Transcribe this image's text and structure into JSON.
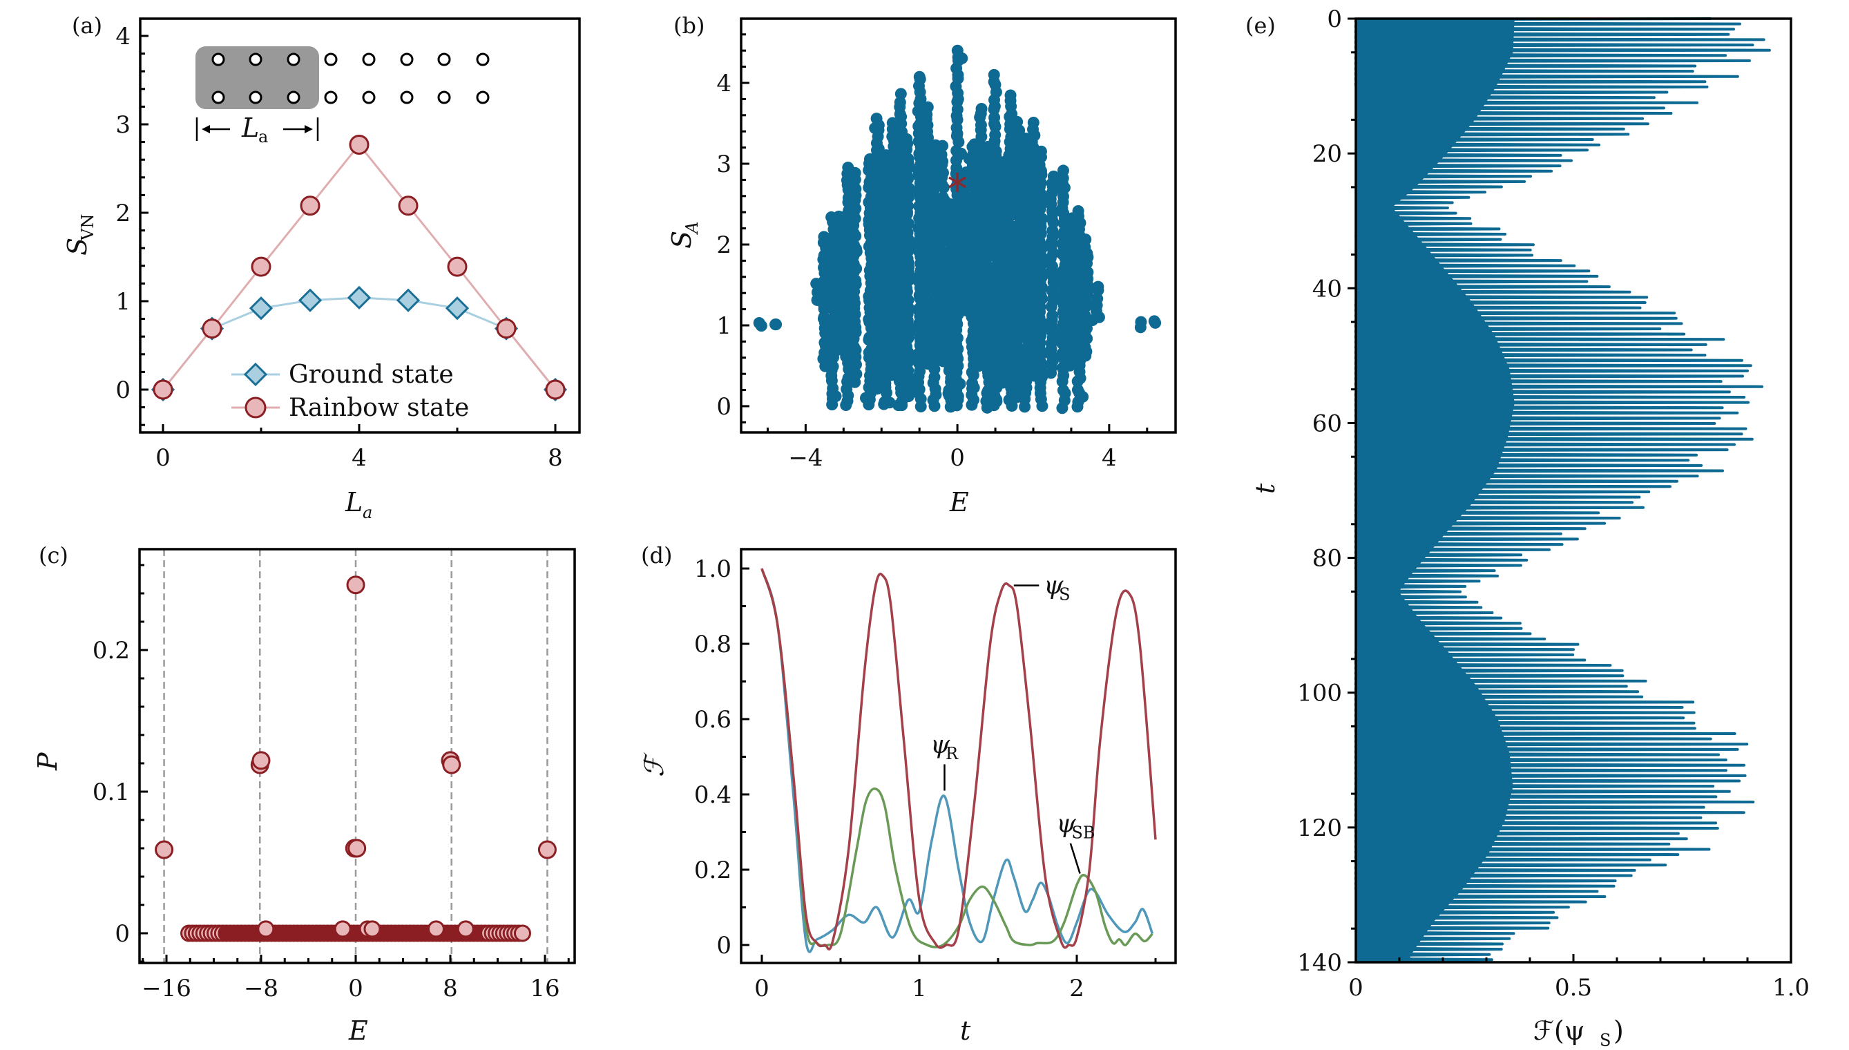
{
  "figure": {
    "panels": [
      "(a)",
      "(b)",
      "(c)",
      "(d)",
      "(e)"
    ]
  },
  "chart_data": [
    {
      "id": "a",
      "panel_label": "(a)",
      "type": "line",
      "xlabel": "L_a",
      "xlabel_main": "L",
      "xlabel_sub": "a",
      "ylabel_main": "S",
      "ylabel_sub": "VN",
      "xlim": [
        -0.5,
        8.5
      ],
      "ylim": [
        -0.5,
        4.2
      ],
      "xticks": [
        0,
        4,
        8
      ],
      "xminor": [
        2,
        6
      ],
      "yticks": [
        0,
        1,
        2,
        3,
        4
      ],
      "grid": false,
      "legend_position": "bottom-center",
      "x": [
        0,
        1,
        2,
        3,
        4,
        5,
        6,
        7,
        8
      ],
      "series": [
        {
          "name": "Ground state",
          "marker": "diamond",
          "color": "#1A6F96",
          "fill": "#A9CFE0",
          "line": "#A9CFE0",
          "values": [
            0,
            0.69,
            0.92,
            1.01,
            1.04,
            1.01,
            0.92,
            0.69,
            0
          ]
        },
        {
          "name": "Rainbow state",
          "marker": "circle",
          "color": "#8B1E22",
          "fill": "#E8B7B9",
          "line": "#E0AEB0",
          "values": [
            0,
            0.69,
            1.39,
            2.08,
            2.77,
            2.08,
            1.39,
            0.69,
            0
          ]
        }
      ],
      "inset": {
        "description": "two-leg ladder of 2x8 sites with subsystem of length L_a shaded",
        "rows": 2,
        "columns": 8,
        "shaded_columns": 3,
        "bracket_label_main": "L",
        "bracket_label_sub": "a",
        "shade_color": "#999999"
      }
    },
    {
      "id": "b",
      "panel_label": "(b)",
      "type": "scatter",
      "xlabel": "E",
      "ylabel_main": "S",
      "ylabel_sub": "A",
      "xlim": [
        -5.7,
        5.75
      ],
      "ylim": [
        -0.32,
        4.8
      ],
      "xticks": [
        -4,
        0,
        4
      ],
      "xtick_labels": [
        "−4",
        "0",
        "4"
      ],
      "yticks": [
        0,
        1,
        2,
        3,
        4
      ],
      "grid": false,
      "color": "#0E6A93",
      "highlight": {
        "name": "rainbow state",
        "marker": "asterisk",
        "color": "#8B2A2E",
        "x": 0,
        "y": 2.77
      },
      "columns_description": "eigenstate entanglement entropies, clustered in vertical stripes at discrete energies",
      "stripes": [
        {
          "x": -5.2,
          "ymin": 1.02,
          "ymax": 1.04
        },
        {
          "x": -4.8,
          "ymin": 1.0,
          "ymax": 1.02
        },
        {
          "x": -3.7,
          "ymin": 1.3,
          "ymax": 1.5
        },
        {
          "x": -3.5,
          "ymin": 0.5,
          "ymax": 2.1
        },
        {
          "x": -3.3,
          "ymin": 0.0,
          "ymax": 2.35
        },
        {
          "x": -3.1,
          "ymin": 0.7,
          "ymax": 2.35
        },
        {
          "x": -2.9,
          "ymin": 0.0,
          "ymax": 2.95
        },
        {
          "x": -2.7,
          "ymin": 0.3,
          "ymax": 2.9
        },
        {
          "x": -2.3,
          "ymin": 0.0,
          "ymax": 3.05
        },
        {
          "x": -2.1,
          "ymin": 0.2,
          "ymax": 3.55
        },
        {
          "x": -1.9,
          "ymin": 0.0,
          "ymax": 3.1
        },
        {
          "x": -1.7,
          "ymin": 0.4,
          "ymax": 3.5
        },
        {
          "x": -1.5,
          "ymin": 0.0,
          "ymax": 3.85
        },
        {
          "x": -1.3,
          "ymin": 0.1,
          "ymax": 3.3
        },
        {
          "x": -1.0,
          "ymin": 0.0,
          "ymax": 4.1
        },
        {
          "x": -0.8,
          "ymin": 0.5,
          "ymax": 3.7
        },
        {
          "x": -0.6,
          "ymin": 0.0,
          "ymax": 3.25
        },
        {
          "x": -0.4,
          "ymin": 0.6,
          "ymax": 3.2
        },
        {
          "x": -0.2,
          "ymin": 0.0,
          "ymax": 2.5
        },
        {
          "x": 0.0,
          "ymin": 0.0,
          "ymax": 4.4
        },
        {
          "x": 0.2,
          "ymin": 1.2,
          "ymax": 2.9
        },
        {
          "x": 0.4,
          "ymin": 0.0,
          "ymax": 3.2
        },
        {
          "x": 0.6,
          "ymin": 0.5,
          "ymax": 3.7
        },
        {
          "x": 0.8,
          "ymin": 0.0,
          "ymax": 3.2
        },
        {
          "x": 1.0,
          "ymin": 0.0,
          "ymax": 4.1
        },
        {
          "x": 1.2,
          "ymin": 0.3,
          "ymax": 3.0
        },
        {
          "x": 1.4,
          "ymin": 0.0,
          "ymax": 3.85
        },
        {
          "x": 1.6,
          "ymin": 0.1,
          "ymax": 3.5
        },
        {
          "x": 1.8,
          "ymin": 0.0,
          "ymax": 3.3
        },
        {
          "x": 2.0,
          "ymin": 0.4,
          "ymax": 3.5
        },
        {
          "x": 2.2,
          "ymin": 0.0,
          "ymax": 3.15
        },
        {
          "x": 2.5,
          "ymin": 0.4,
          "ymax": 2.85
        },
        {
          "x": 2.8,
          "ymin": 0.0,
          "ymax": 2.9
        },
        {
          "x": 3.0,
          "ymin": 0.5,
          "ymax": 2.35
        },
        {
          "x": 3.2,
          "ymin": 0.0,
          "ymax": 2.4
        },
        {
          "x": 3.4,
          "ymin": 0.6,
          "ymax": 2.05
        },
        {
          "x": 3.7,
          "ymin": 1.1,
          "ymax": 1.5
        },
        {
          "x": 4.8,
          "ymin": 1.0,
          "ymax": 1.02
        },
        {
          "x": 5.2,
          "ymin": 1.02,
          "ymax": 1.04
        }
      ]
    },
    {
      "id": "c",
      "panel_label": "(c)",
      "type": "scatter",
      "xlabel": "E",
      "ylabel": "P",
      "xlim": [
        -18.3,
        18.5
      ],
      "ylim": [
        -0.02,
        0.27
      ],
      "xticks": [
        -16,
        -8,
        0,
        8,
        16
      ],
      "xtick_labels": [
        "−16",
        "−8",
        "0",
        "8",
        "16"
      ],
      "yticks": [
        0,
        0.1,
        0.2
      ],
      "ytick_labels": [
        "0",
        "0.1",
        "0.2"
      ],
      "grid": false,
      "reference_lines_x": [
        -16.2,
        -8.1,
        0,
        8.1,
        16.2
      ],
      "marker_color": "#8B1E22",
      "marker_fill": "#E8B7B9",
      "points": [
        {
          "x": -16.2,
          "y": 0.059
        },
        {
          "x": -8.1,
          "y": 0.119
        },
        {
          "x": -8.0,
          "y": 0.122
        },
        {
          "x": 0.0,
          "y": 0.246
        },
        {
          "x": -0.1,
          "y": 0.06
        },
        {
          "x": 0.1,
          "y": 0.06
        },
        {
          "x": 8.0,
          "y": 0.122
        },
        {
          "x": 8.1,
          "y": 0.119
        },
        {
          "x": 16.2,
          "y": 0.059
        }
      ],
      "baseline": {
        "y": 0.0,
        "xmin": -14.1,
        "xmax": 14.1,
        "description": "dense cluster of near-zero overlaps"
      }
    },
    {
      "id": "d",
      "panel_label": "(d)",
      "type": "line",
      "xlabel": "t",
      "ylabel": "ℱ",
      "xlim": [
        -0.13,
        2.63
      ],
      "ylim": [
        -0.048,
        1.05
      ],
      "xticks": [
        0,
        1,
        2
      ],
      "yticks": [
        0,
        0.2,
        0.4,
        0.6,
        0.8,
        1.0
      ],
      "ytick_labels": [
        "0",
        "0.2",
        "0.4",
        "0.6",
        "0.8",
        "1.0"
      ],
      "grid": false,
      "series": [
        {
          "name": "psi_S",
          "label_main": "ψ",
          "label_sub": "S",
          "color": "#A3404A",
          "t": [
            0,
            0.1,
            0.2,
            0.28,
            0.35,
            0.4,
            0.45,
            0.55,
            0.65,
            0.72,
            0.77,
            0.82,
            0.9,
            1.0,
            1.1,
            1.17,
            1.25,
            1.35,
            1.45,
            1.52,
            1.57,
            1.62,
            1.7,
            1.8,
            1.9,
            1.95,
            2.0,
            2.08,
            2.15,
            2.25,
            2.33,
            2.4,
            2.5
          ],
          "values": [
            1.0,
            0.85,
            0.45,
            0.08,
            0.005,
            0.0,
            0.01,
            0.25,
            0.72,
            0.95,
            0.98,
            0.9,
            0.55,
            0.12,
            0.005,
            0.0,
            0.04,
            0.38,
            0.8,
            0.94,
            0.955,
            0.9,
            0.6,
            0.18,
            0.01,
            0.0,
            0.02,
            0.2,
            0.55,
            0.88,
            0.935,
            0.8,
            0.28
          ]
        },
        {
          "name": "psi_R",
          "label_main": "ψ",
          "label_sub": "R",
          "color": "#4F98BA",
          "t": [
            0,
            0.1,
            0.2,
            0.28,
            0.35,
            0.45,
            0.55,
            0.65,
            0.73,
            0.83,
            0.93,
            1.0,
            1.08,
            1.16,
            1.25,
            1.32,
            1.4,
            1.47,
            1.55,
            1.6,
            1.67,
            1.72,
            1.77,
            1.82,
            1.88,
            1.94,
            2.0,
            2.07,
            2.12,
            2.2,
            2.3,
            2.37,
            2.42,
            2.48
          ],
          "values": [
            1.0,
            0.85,
            0.4,
            0.01,
            0.015,
            0.04,
            0.08,
            0.06,
            0.1,
            0.02,
            0.12,
            0.09,
            0.28,
            0.395,
            0.2,
            0.06,
            0.01,
            0.12,
            0.225,
            0.18,
            0.09,
            0.12,
            0.165,
            0.13,
            0.05,
            0.005,
            0.06,
            0.14,
            0.14,
            0.08,
            0.035,
            0.06,
            0.095,
            0.03
          ]
        },
        {
          "name": "psi_SB",
          "label_main": "ψ",
          "label_sub": "SB",
          "color": "#6A9A58",
          "t": [
            0,
            0.1,
            0.2,
            0.28,
            0.35,
            0.42,
            0.5,
            0.6,
            0.66,
            0.72,
            0.78,
            0.85,
            0.95,
            1.05,
            1.15,
            1.25,
            1.32,
            1.4,
            1.47,
            1.55,
            1.6,
            1.7,
            1.75,
            1.85,
            1.92,
            2.0,
            2.05,
            2.12,
            2.18,
            2.23,
            2.27,
            2.31,
            2.37,
            2.43,
            2.48
          ],
          "values": [
            1.0,
            0.85,
            0.45,
            0.05,
            0.005,
            0.0,
            0.03,
            0.25,
            0.38,
            0.415,
            0.37,
            0.2,
            0.04,
            0.0,
            0.0,
            0.05,
            0.12,
            0.155,
            0.12,
            0.05,
            0.01,
            0.0,
            0.005,
            0.01,
            0.06,
            0.16,
            0.185,
            0.14,
            0.05,
            0.005,
            0.015,
            0.0,
            0.03,
            0.01,
            0.03
          ]
        }
      ],
      "annotations": [
        {
          "series": "psi_S",
          "text_main": "ψ",
          "text_sub": "S",
          "at_t": 1.57,
          "at_y": 0.955
        },
        {
          "series": "psi_R",
          "text_main": "ψ",
          "text_sub": "R",
          "at_t": 1.16,
          "at_y": 0.4
        },
        {
          "series": "psi_SB",
          "text_main": "ψ",
          "text_sub": "SB",
          "at_t": 2.02,
          "at_y": 0.185
        }
      ]
    },
    {
      "id": "e",
      "panel_label": "(e)",
      "type": "line",
      "orientation": "horizontal-value, vertical-time (t increases downward)",
      "xlabel_main": "ℱ(ψ",
      "xlabel_sub": "S",
      "xlabel_close": ")",
      "ylabel": "t",
      "xlim": [
        0,
        1.0
      ],
      "ylim": [
        0,
        140
      ],
      "xticks": [
        0,
        0.5,
        1.0
      ],
      "xtick_labels": [
        "0",
        "0.5",
        "1.0"
      ],
      "yticks": [
        0,
        20,
        40,
        60,
        80,
        100,
        120,
        140
      ],
      "grid": false,
      "color": "#0E6A93",
      "oscillation_period": 0.78,
      "envelope": {
        "t": [
          0,
          5,
          10,
          15,
          20,
          25,
          28,
          32,
          37,
          42,
          47,
          52,
          57,
          62,
          67,
          72,
          77,
          82,
          85,
          89,
          94,
          99,
          104,
          109,
          114,
          119,
          124,
          129,
          134,
          139
        ],
        "max": [
          0.96,
          0.95,
          0.85,
          0.72,
          0.55,
          0.36,
          0.22,
          0.36,
          0.53,
          0.7,
          0.84,
          0.93,
          0.96,
          0.92,
          0.85,
          0.7,
          0.52,
          0.35,
          0.26,
          0.38,
          0.56,
          0.73,
          0.86,
          0.93,
          0.95,
          0.9,
          0.8,
          0.65,
          0.47,
          0.33
        ],
        "min": [
          0.0,
          0.0,
          0.0,
          0.01,
          0.01,
          0.0,
          0.02,
          0.0,
          0.01,
          0.0,
          0.0,
          0.0,
          0.0,
          0.0,
          0.0,
          0.0,
          0.0,
          0.0,
          0.02,
          0.01,
          0.0,
          0.0,
          0.0,
          0.0,
          0.0,
          0.0,
          0.0,
          0.0,
          0.01,
          0.02
        ]
      }
    }
  ]
}
